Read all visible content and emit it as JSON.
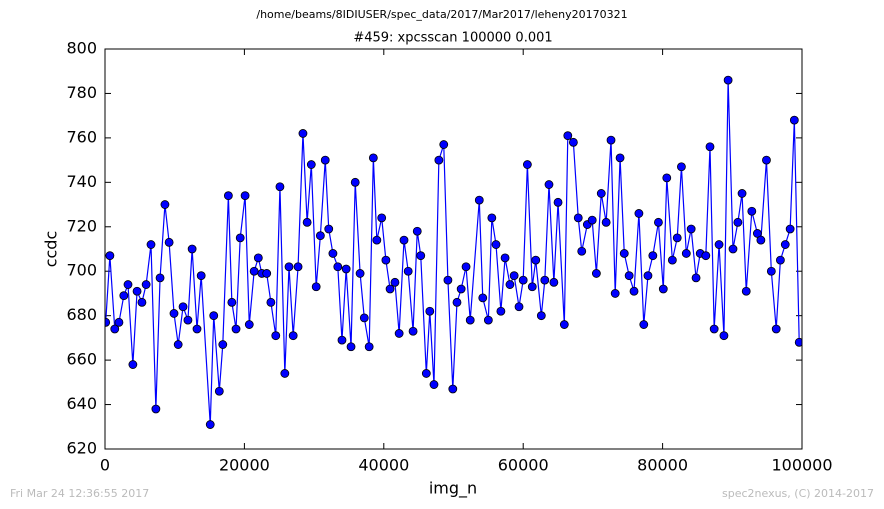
{
  "chart_data": {
    "type": "line",
    "suptitle": "/home/beams/8IDIUSER/spec_data/2017/Mar2017/leheny20170321",
    "title": "#459: xpcsscan 100000 0.001",
    "xlabel": "img_n",
    "ylabel": "ccdc",
    "footer_left": "Fri Mar 24 12:36:55 2017",
    "footer_right": "spec2nexus, (C) 2014-2017",
    "xlim": [
      0,
      100000
    ],
    "xticks": [
      0,
      20000,
      40000,
      60000,
      80000,
      100000
    ],
    "ylim": [
      620,
      800
    ],
    "yticks": [
      620,
      640,
      660,
      680,
      700,
      720,
      740,
      760,
      780,
      800
    ],
    "x": [
      100,
      700,
      1400,
      2000,
      2700,
      3300,
      4000,
      4600,
      5300,
      5900,
      6600,
      7300,
      7900,
      8600,
      9200,
      9900,
      10500,
      11200,
      11900,
      12500,
      13200,
      13800,
      15100,
      15600,
      16400,
      16900,
      17700,
      18200,
      18800,
      19400,
      20100,
      20700,
      21400,
      22000,
      22500,
      23200,
      23800,
      24500,
      25100,
      25800,
      26400,
      27000,
      27700,
      28400,
      29000,
      29600,
      30300,
      30900,
      31600,
      32100,
      32700,
      33400,
      34000,
      34600,
      35300,
      35900,
      36600,
      37200,
      37900,
      38500,
      39000,
      39700,
      40300,
      40900,
      41600,
      42200,
      42900,
      43500,
      44200,
      44800,
      45300,
      46100,
      46600,
      47200,
      47900,
      48600,
      49200,
      49900,
      50500,
      51100,
      51800,
      52400,
      53700,
      54200,
      55000,
      55500,
      56100,
      56800,
      57400,
      58100,
      58700,
      59400,
      60000,
      60600,
      61300,
      61800,
      62600,
      63100,
      63700,
      64400,
      65000,
      65900,
      66400,
      67200,
      67900,
      68400,
      69200,
      69900,
      70500,
      71200,
      71900,
      72600,
      73200,
      73900,
      74500,
      75200,
      75900,
      76600,
      77300,
      77900,
      78600,
      79400,
      80100,
      80600,
      81400,
      82100,
      82700,
      83400,
      84100,
      84800,
      85400,
      86200,
      86800,
      87400,
      88100,
      88800,
      89400,
      90100,
      90800,
      91400,
      92000,
      92800,
      93600,
      94100,
      94900,
      95600,
      96300,
      96900,
      97600,
      98300,
      98900,
      99600
    ],
    "series": [
      {
        "color": "#0000ff",
        "values": [
          677,
          707,
          674,
          677,
          689,
          694,
          658,
          691,
          686,
          694,
          712,
          638,
          697,
          730,
          713,
          681,
          667,
          684,
          678,
          710,
          674,
          698,
          631,
          680,
          646,
          667,
          734,
          686,
          674,
          715,
          734,
          676,
          700,
          706,
          699,
          699,
          686,
          671,
          738,
          654,
          702,
          671,
          702,
          762,
          722,
          748,
          693,
          716,
          750,
          719,
          708,
          702,
          669,
          701,
          666,
          740,
          699,
          679,
          666,
          751,
          714,
          724,
          705,
          692,
          695,
          672,
          714,
          700,
          673,
          718,
          707,
          654,
          682,
          649,
          750,
          757,
          696,
          647,
          686,
          692,
          702,
          678,
          732,
          688,
          678,
          724,
          712,
          682,
          706,
          694,
          698,
          684,
          696,
          748,
          693,
          705,
          680,
          696,
          739,
          695,
          731,
          676,
          761,
          758,
          724,
          709,
          721,
          723,
          699,
          735,
          722,
          759,
          690,
          751,
          708,
          698,
          691,
          726,
          676,
          698,
          707,
          722,
          692,
          742,
          705,
          715,
          747,
          708,
          719,
          697,
          708,
          707,
          756,
          674,
          712,
          671,
          786,
          710,
          722,
          735,
          691,
          727,
          717,
          714,
          750,
          700,
          674,
          705,
          712,
          719,
          768,
          668
        ]
      }
    ]
  }
}
